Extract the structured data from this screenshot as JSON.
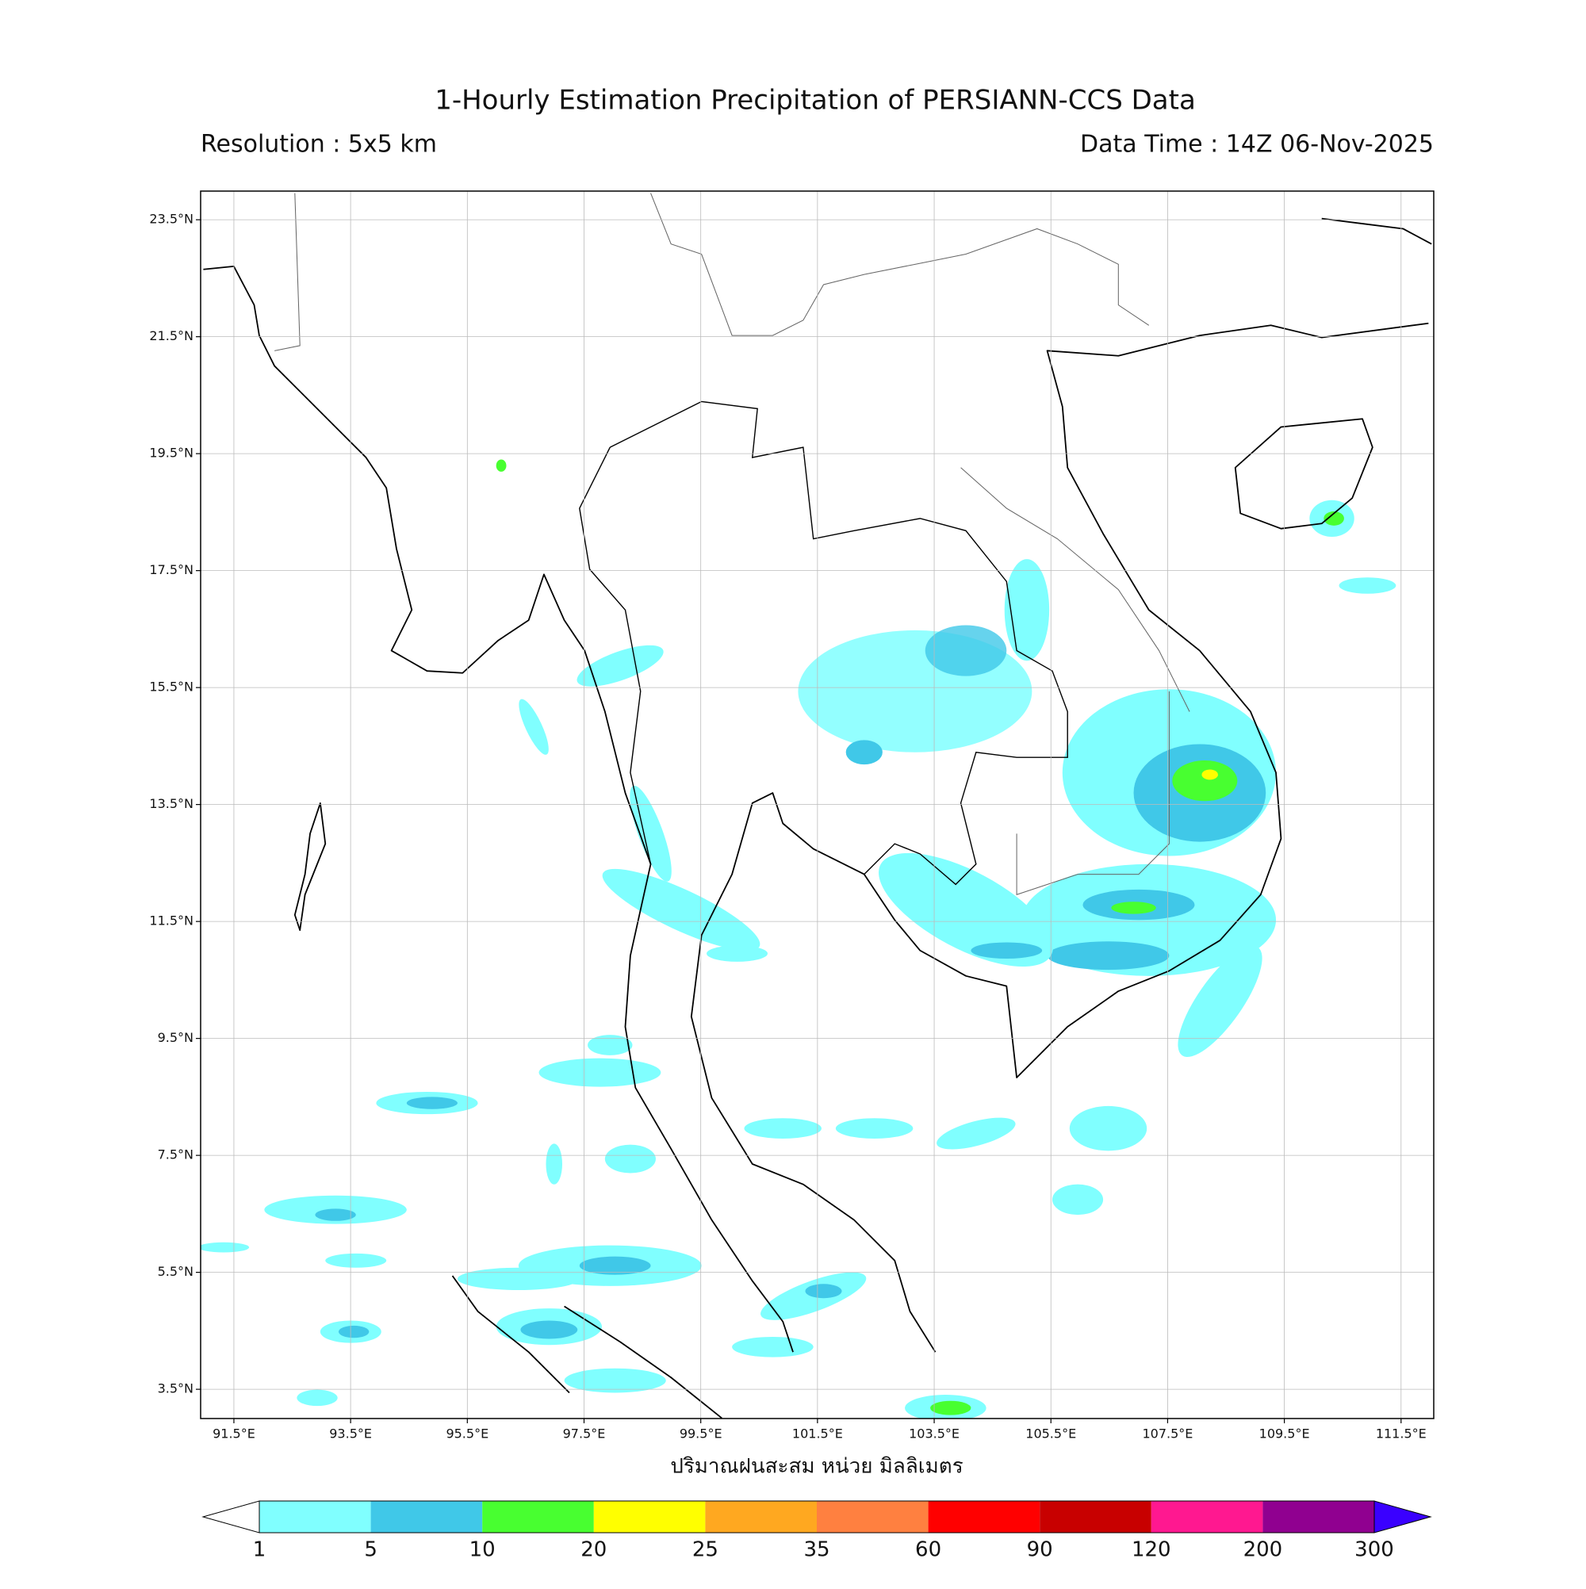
{
  "header": {
    "title": "1-Hourly Estimation Precipitation of PERSIANN-CCS Data",
    "resolution": "Resolution : 5x5 km",
    "data_time": "Data Time : 14Z 06-Nov-2025"
  },
  "map": {
    "lonlim": [
      90.93,
      112.06
    ],
    "latlim": [
      3.0,
      23.99
    ],
    "grid": true,
    "xlabel": "ปริมาณฝนสะสม หน่วย มิลลิเมตร",
    "lon_ticks": [
      {
        "value": 91.5,
        "label": "91.5°E"
      },
      {
        "value": 93.5,
        "label": "93.5°E"
      },
      {
        "value": 95.5,
        "label": "95.5°E"
      },
      {
        "value": 97.5,
        "label": "97.5°E"
      },
      {
        "value": 99.5,
        "label": "99.5°E"
      },
      {
        "value": 101.5,
        "label": "101.5°E"
      },
      {
        "value": 103.5,
        "label": "103.5°E"
      },
      {
        "value": 105.5,
        "label": "105.5°E"
      },
      {
        "value": 107.5,
        "label": "107.5°E"
      },
      {
        "value": 109.5,
        "label": "109.5°E"
      },
      {
        "value": 111.5,
        "label": "111.5°E"
      }
    ],
    "lat_ticks": [
      {
        "value": 3.5,
        "label": "3.5°N"
      },
      {
        "value": 5.5,
        "label": "5.5°N"
      },
      {
        "value": 7.5,
        "label": "7.5°N"
      },
      {
        "value": 9.5,
        "label": "9.5°N"
      },
      {
        "value": 11.5,
        "label": "11.5°N"
      },
      {
        "value": 13.5,
        "label": "13.5°N"
      },
      {
        "value": 15.5,
        "label": "15.5°N"
      },
      {
        "value": 17.5,
        "label": "17.5°N"
      },
      {
        "value": 19.5,
        "label": "19.5°N"
      },
      {
        "value": 21.5,
        "label": "21.5°N"
      },
      {
        "value": 23.5,
        "label": "23.5°N"
      }
    ]
  },
  "colorbar": {
    "levels": [
      1,
      5,
      10,
      20,
      25,
      35,
      60,
      90,
      120,
      200,
      300
    ],
    "under_color": "#ffffff",
    "colors": [
      "#80ffff",
      "#40c8e8",
      "#48ff30",
      "#ffff00",
      "#ffa820",
      "#ff8040",
      "#ff0000",
      "#c80000",
      "#ff1890",
      "#900090"
    ],
    "over_color": "#3a00ff"
  }
}
